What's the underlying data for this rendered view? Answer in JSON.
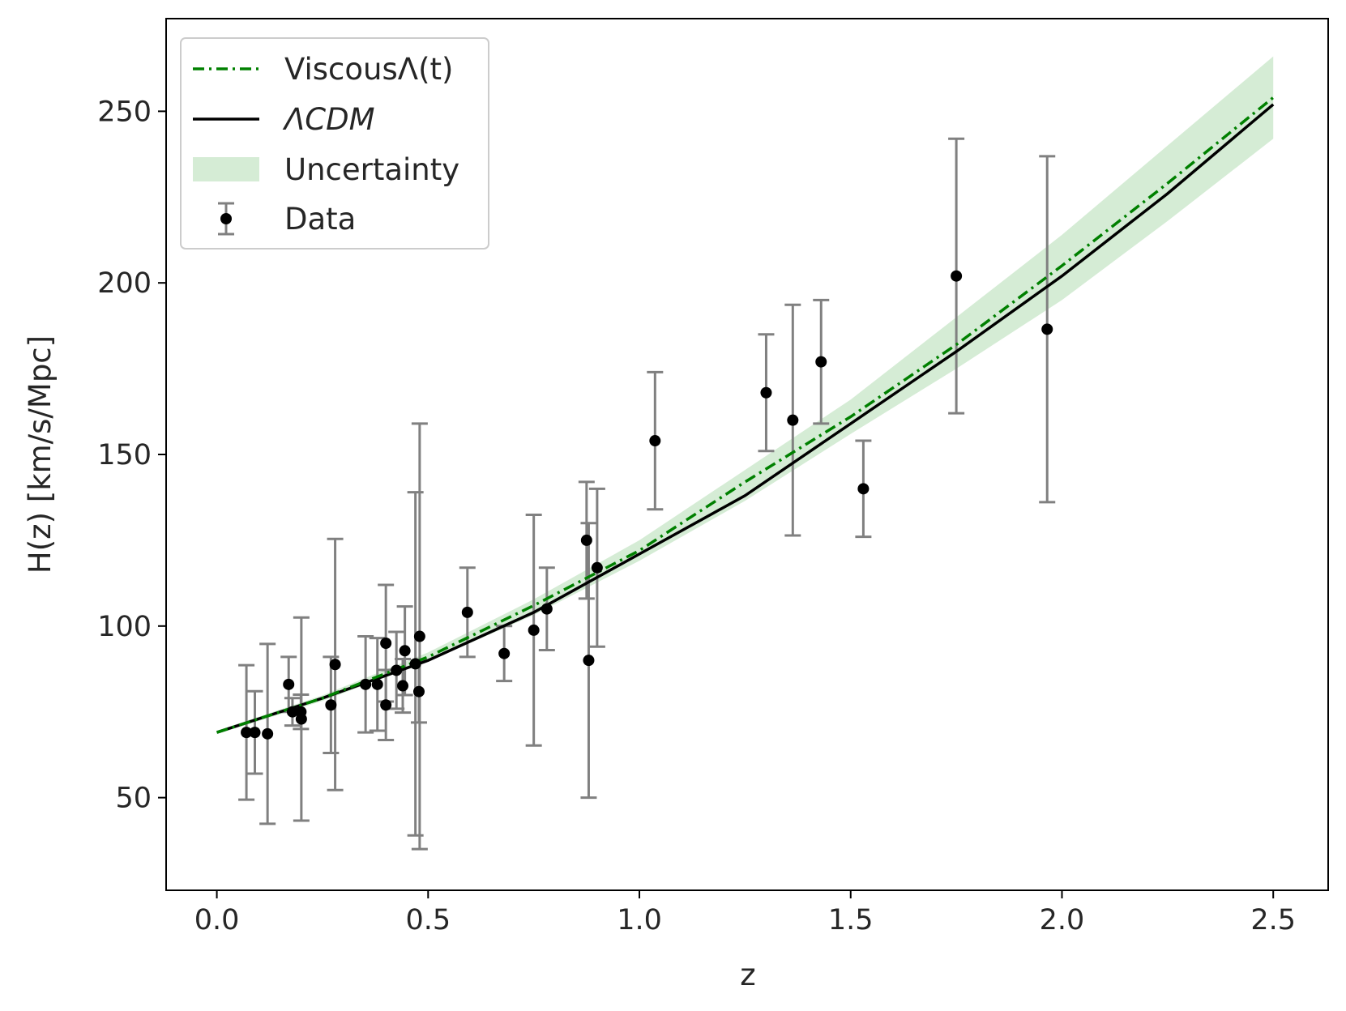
{
  "chart_data": {
    "type": "scatter",
    "xlabel": "z",
    "ylabel": "H(z) [km/s/Mpc]",
    "xlim": [
      -0.12,
      2.63
    ],
    "ylim": [
      23,
      277
    ],
    "xticks": [
      0.0,
      0.5,
      1.0,
      1.5,
      2.0,
      2.5
    ],
    "xtick_labels": [
      "0.0",
      "0.5",
      "1.0",
      "1.5",
      "2.0",
      "2.5"
    ],
    "yticks": [
      50,
      100,
      150,
      200,
      250
    ],
    "ytick_labels": [
      "50",
      "100",
      "150",
      "200",
      "250"
    ],
    "grid": false,
    "legend_position": "upper left",
    "colors": {
      "viscous": "#008000",
      "lcdm": "#000000",
      "band": "#2ca02c",
      "points": "#000000",
      "errorbars": "#808080"
    },
    "series": [
      {
        "name": "ViscousΛ(t)",
        "kind": "line",
        "style": "dashdot",
        "x": [
          0.0,
          0.25,
          0.5,
          0.75,
          1.0,
          1.25,
          1.5,
          1.75,
          2.0,
          2.25,
          2.5
        ],
        "values": [
          69.0,
          79.0,
          91.0,
          106.0,
          122.0,
          142.0,
          161.0,
          182.0,
          205.0,
          229.0,
          254.0
        ]
      },
      {
        "name": "ΛCDM",
        "kind": "line",
        "style": "solid",
        "x": [
          0.0,
          0.25,
          0.5,
          0.75,
          1.0,
          1.25,
          1.5,
          1.75,
          2.0,
          2.25,
          2.5
        ],
        "values": [
          69.0,
          79.0,
          90.0,
          104.0,
          121.0,
          138.0,
          159.0,
          180.0,
          202.0,
          226.0,
          252.0
        ]
      },
      {
        "name": "Uncertainty",
        "kind": "band",
        "x": [
          0.0,
          0.25,
          0.5,
          0.75,
          1.0,
          1.25,
          1.5,
          1.75,
          2.0,
          2.25,
          2.5
        ],
        "upper": [
          69.5,
          79.8,
          92.3,
          107.8,
          125.0,
          145.5,
          166.0,
          190.0,
          214.0,
          240.0,
          266.0
        ],
        "lower": [
          68.5,
          78.2,
          89.7,
          103.2,
          119.0,
          136.5,
          156.0,
          175.0,
          195.0,
          218.0,
          242.0
        ]
      },
      {
        "name": "Data",
        "kind": "errorbar",
        "x": [
          0.07,
          0.09,
          0.12,
          0.17,
          0.179,
          0.199,
          0.2,
          0.27,
          0.28,
          0.352,
          0.38,
          0.4,
          0.4,
          0.425,
          0.44,
          0.445,
          0.47,
          0.4783,
          0.48,
          0.593,
          0.68,
          0.75,
          0.781,
          0.875,
          0.88,
          0.9,
          1.037,
          1.3,
          1.363,
          1.43,
          1.53,
          1.75,
          1.965
        ],
        "values": [
          69,
          69,
          68.6,
          83,
          75,
          75,
          72.9,
          77,
          88.8,
          83,
          83,
          95,
          77,
          87.1,
          82.6,
          92.8,
          89,
          80.9,
          97,
          104,
          92,
          98.8,
          105,
          125,
          90,
          117,
          154,
          168,
          160,
          177,
          140,
          202,
          186.5
        ],
        "errors": [
          19.6,
          12,
          26.2,
          8,
          4,
          5,
          29.6,
          14,
          36.6,
          14,
          13.5,
          17,
          10.2,
          11.2,
          7.8,
          12.9,
          50,
          9,
          62,
          13,
          8,
          33.6,
          12,
          17,
          40,
          23,
          20,
          17,
          33.6,
          18,
          14,
          40,
          50.4
        ]
      }
    ]
  }
}
